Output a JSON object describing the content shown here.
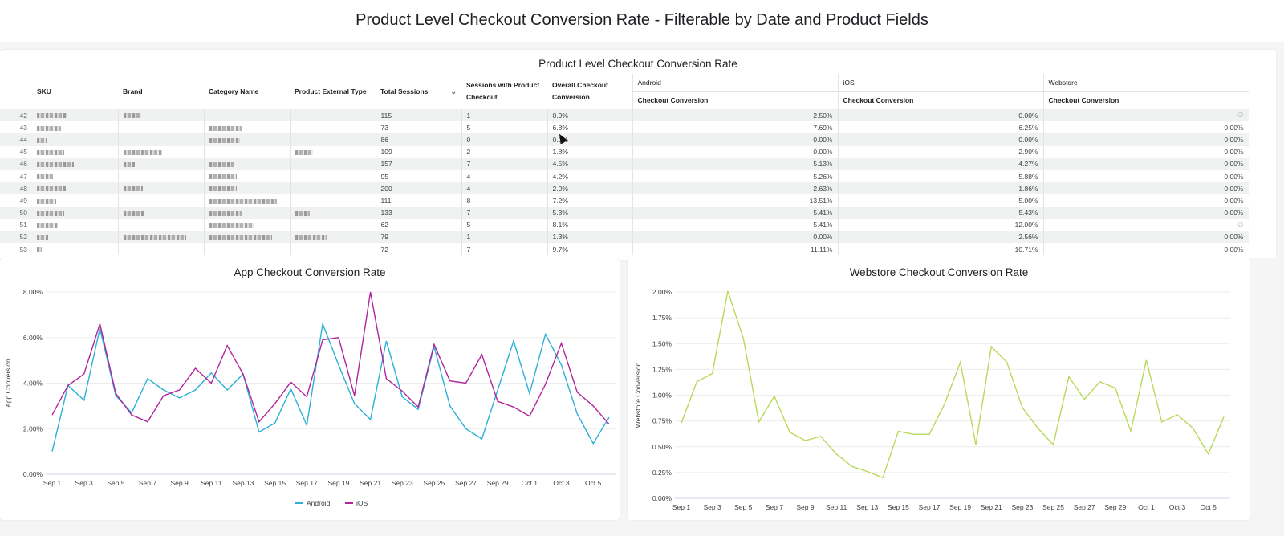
{
  "page": {
    "title": "Product Level Checkout Conversion Rate - Filterable by Date and Product Fields"
  },
  "table": {
    "title": "Product Level Checkout Conversion Rate",
    "columns": {
      "sku": "SKU",
      "brand": "Brand",
      "category": "Category Name",
      "ext_type": "Product External Type",
      "total_sessions": "Total Sessions",
      "sessions_checkout": "Sessions with Product Checkout",
      "overall": "Overall Checkout Conversion",
      "android_group": "Android",
      "ios_group": "iOS",
      "webstore_group": "Webstore",
      "android_sub": "Checkout Conversion",
      "ios_sub": "Checkout Conversion",
      "webstore_sub": "Checkout Conversion"
    },
    "sort_icon": "chevron-down-icon",
    "rows": [
      {
        "idx": "42",
        "total": "115",
        "checkout": "1",
        "overall": "0.9%",
        "android": "2.50%",
        "ios": "0.00%",
        "webstore": "∅"
      },
      {
        "idx": "43",
        "total": "73",
        "checkout": "5",
        "overall": "6.8%",
        "android": "7.69%",
        "ios": "6.25%",
        "webstore": "0.00%"
      },
      {
        "idx": "44",
        "total": "86",
        "checkout": "0",
        "overall": "0.0%",
        "android": "0.00%",
        "ios": "0.00%",
        "webstore": "0.00%"
      },
      {
        "idx": "45",
        "total": "109",
        "checkout": "2",
        "overall": "1.8%",
        "android": "0.00%",
        "ios": "2.90%",
        "webstore": "0.00%"
      },
      {
        "idx": "46",
        "total": "157",
        "checkout": "7",
        "overall": "4.5%",
        "android": "5.13%",
        "ios": "4.27%",
        "webstore": "0.00%"
      },
      {
        "idx": "47",
        "total": "95",
        "checkout": "4",
        "overall": "4.2%",
        "android": "5.26%",
        "ios": "5.88%",
        "webstore": "0.00%"
      },
      {
        "idx": "48",
        "total": "200",
        "checkout": "4",
        "overall": "2.0%",
        "android": "2.63%",
        "ios": "1.86%",
        "webstore": "0.00%"
      },
      {
        "idx": "49",
        "total": "111",
        "checkout": "8",
        "overall": "7.2%",
        "android": "13.51%",
        "ios": "5.00%",
        "webstore": "0.00%"
      },
      {
        "idx": "50",
        "total": "133",
        "checkout": "7",
        "overall": "5.3%",
        "android": "5.41%",
        "ios": "5.43%",
        "webstore": "0.00%"
      },
      {
        "idx": "51",
        "total": "62",
        "checkout": "5",
        "overall": "8.1%",
        "android": "5.41%",
        "ios": "12.00%",
        "webstore": "∅"
      },
      {
        "idx": "52",
        "total": "79",
        "checkout": "1",
        "overall": "1.3%",
        "android": "0.00%",
        "ios": "2.56%",
        "webstore": "0.00%"
      },
      {
        "idx": "53",
        "total": "72",
        "checkout": "7",
        "overall": "9.7%",
        "android": "11.11%",
        "ios": "10.71%",
        "webstore": "0.00%"
      }
    ]
  },
  "chart_data": [
    {
      "type": "line",
      "title": "App Checkout Conversion Rate",
      "xlabel": "",
      "ylabel": "App Conversion",
      "ylim": [
        0,
        8
      ],
      "yticks": [
        "0.00%",
        "2.00%",
        "4.00%",
        "6.00%",
        "8.00%"
      ],
      "ytick_values": [
        0,
        2,
        4,
        6,
        8
      ],
      "x": [
        "Sep 1",
        "Sep 2",
        "Sep 3",
        "Sep 4",
        "Sep 5",
        "Sep 6",
        "Sep 7",
        "Sep 8",
        "Sep 9",
        "Sep 10",
        "Sep 11",
        "Sep 12",
        "Sep 13",
        "Sep 14",
        "Sep 15",
        "Sep 16",
        "Sep 17",
        "Sep 18",
        "Sep 19",
        "Sep 20",
        "Sep 21",
        "Sep 22",
        "Sep 23",
        "Sep 24",
        "Sep 25",
        "Sep 26",
        "Sep 27",
        "Sep 28",
        "Sep 29",
        "Sep 30",
        "Oct 1",
        "Oct 2",
        "Oct 3",
        "Oct 4",
        "Oct 5",
        "Oct 6"
      ],
      "xticks": [
        "Sep 1",
        "Sep 3",
        "Sep 5",
        "Sep 7",
        "Sep 9",
        "Sep 11",
        "Sep 13",
        "Sep 15",
        "Sep 17",
        "Sep 19",
        "Sep 21",
        "Sep 23",
        "Sep 25",
        "Sep 27",
        "Sep 29",
        "Oct 1",
        "Oct 3",
        "Oct 5"
      ],
      "grid": true,
      "legend": "bottom-center",
      "series": [
        {
          "name": "Android",
          "color": "#2bb0d6",
          "values": [
            1.0,
            3.9,
            3.25,
            6.4,
            3.45,
            2.7,
            4.2,
            3.7,
            3.35,
            3.7,
            4.45,
            3.7,
            4.4,
            1.85,
            2.25,
            3.75,
            2.15,
            6.6,
            4.8,
            3.1,
            2.4,
            5.85,
            3.4,
            2.85,
            5.6,
            3.0,
            2.0,
            1.55,
            3.7,
            5.85,
            3.55,
            6.15,
            4.8,
            2.65,
            1.35,
            2.5
          ]
        },
        {
          "name": "iOS",
          "color": "#b0259c",
          "values": [
            2.6,
            3.9,
            4.4,
            6.6,
            3.55,
            2.6,
            2.3,
            3.45,
            3.7,
            4.65,
            4.0,
            5.65,
            4.4,
            2.3,
            3.1,
            4.05,
            3.4,
            5.9,
            6.0,
            3.45,
            8.0,
            4.2,
            3.65,
            2.95,
            5.7,
            4.1,
            4.0,
            5.25,
            3.2,
            2.95,
            2.55,
            3.95,
            5.75,
            3.6,
            3.0,
            2.2
          ]
        }
      ]
    },
    {
      "type": "line",
      "title": "Webstore Checkout Conversion Rate",
      "xlabel": "",
      "ylabel": "Webstore Conversion",
      "ylim": [
        0,
        2
      ],
      "yticks": [
        "0.00%",
        "0.25%",
        "0.50%",
        "0.75%",
        "1.00%",
        "1.25%",
        "1.50%",
        "1.75%",
        "2.00%"
      ],
      "ytick_values": [
        0,
        0.25,
        0.5,
        0.75,
        1.0,
        1.25,
        1.5,
        1.75,
        2.0
      ],
      "x": [
        "Sep 1",
        "Sep 2",
        "Sep 3",
        "Sep 4",
        "Sep 5",
        "Sep 6",
        "Sep 7",
        "Sep 8",
        "Sep 9",
        "Sep 10",
        "Sep 11",
        "Sep 12",
        "Sep 13",
        "Sep 14",
        "Sep 15",
        "Sep 16",
        "Sep 17",
        "Sep 18",
        "Sep 19",
        "Sep 20",
        "Sep 21",
        "Sep 22",
        "Sep 23",
        "Sep 24",
        "Sep 25",
        "Sep 26",
        "Sep 27",
        "Sep 28",
        "Sep 29",
        "Sep 30",
        "Oct 1",
        "Oct 2",
        "Oct 3",
        "Oct 4",
        "Oct 5",
        "Oct 6"
      ],
      "xticks": [
        "Sep 1",
        "Sep 3",
        "Sep 5",
        "Sep 7",
        "Sep 9",
        "Sep 11",
        "Sep 13",
        "Sep 15",
        "Sep 17",
        "Sep 19",
        "Sep 21",
        "Sep 23",
        "Sep 25",
        "Sep 27",
        "Sep 29",
        "Oct 1",
        "Oct 3",
        "Oct 5"
      ],
      "grid": true,
      "legend": "none",
      "series": [
        {
          "name": "Webstore",
          "color": "#b8d95a",
          "values": [
            0.73,
            1.13,
            1.21,
            2.01,
            1.55,
            0.74,
            0.99,
            0.64,
            0.56,
            0.6,
            0.43,
            0.31,
            0.26,
            0.2,
            0.65,
            0.62,
            0.62,
            0.92,
            1.32,
            0.52,
            1.47,
            1.32,
            0.88,
            0.68,
            0.52,
            1.18,
            0.96,
            1.13,
            1.07,
            0.65,
            1.34,
            0.74,
            0.81,
            0.68,
            0.43,
            0.79
          ]
        }
      ]
    }
  ]
}
